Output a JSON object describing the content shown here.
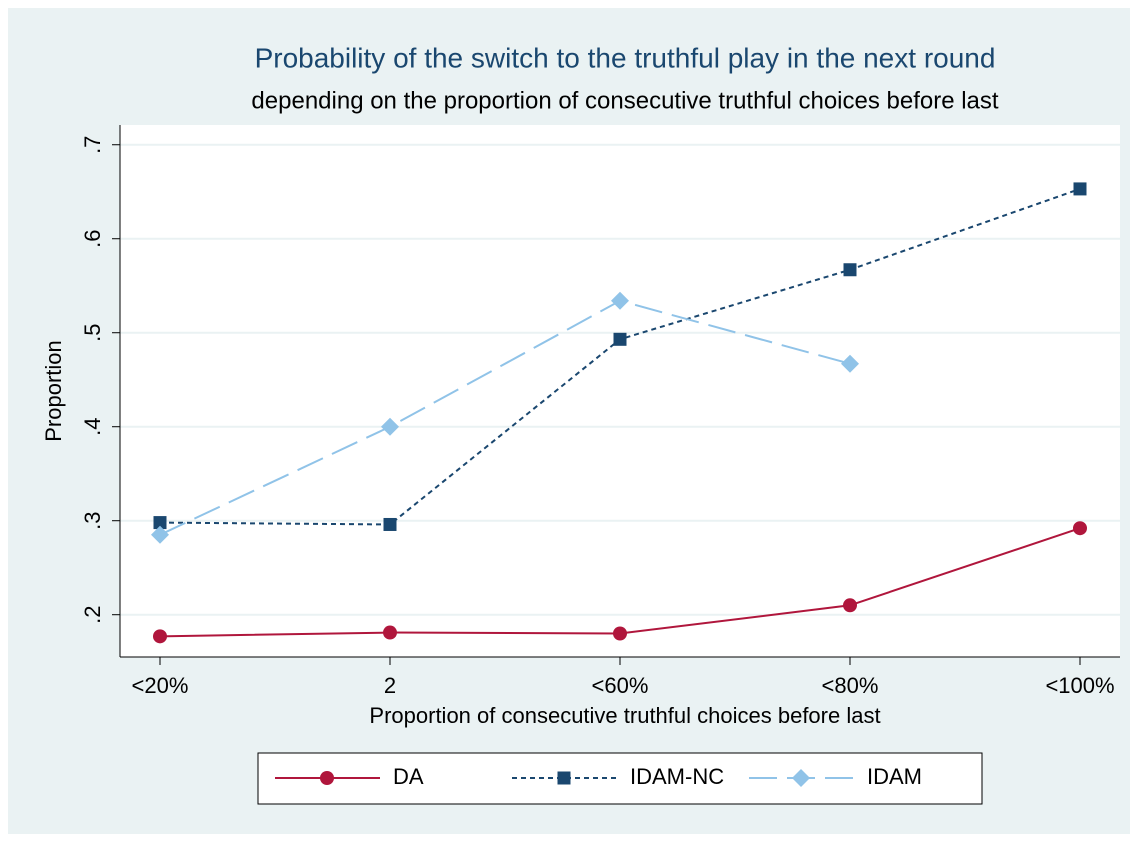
{
  "chart_data": {
    "type": "line",
    "title": "Probability of the switch to the truthful play in the next round",
    "subtitle": "depending on the proportion of consecutive truthful choices before last",
    "x_label": "Proportion of consecutive truthful choices before last",
    "y_label": "Proportion",
    "categories": [
      "<20%",
      "2",
      "<60%",
      "<80%",
      "<100%"
    ],
    "series": [
      {
        "name": "DA",
        "color": "#b0163c",
        "dash": "solid",
        "marker": "circle",
        "values": [
          0.177,
          0.181,
          0.18,
          0.21,
          0.292
        ]
      },
      {
        "name": "IDAM-NC",
        "color": "#1a476f",
        "dash": "dot",
        "marker": "square",
        "values": [
          0.298,
          0.296,
          0.493,
          0.567,
          0.653
        ]
      },
      {
        "name": "IDAM",
        "color": "#90c3e8",
        "dash": "longdash",
        "marker": "diamond",
        "values": [
          0.285,
          0.4,
          0.534,
          0.467,
          null
        ]
      }
    ],
    "ylim": [
      0.155,
      0.721
    ],
    "yticks": [
      {
        "value": 0.2,
        "label": ".2"
      },
      {
        "value": 0.3,
        "label": ".3"
      },
      {
        "value": 0.4,
        "label": ".4"
      },
      {
        "value": 0.5,
        "label": ".5"
      },
      {
        "value": 0.6,
        "label": ".6"
      },
      {
        "value": 0.7,
        "label": ".7"
      }
    ],
    "grid": true,
    "legend": "bottom"
  }
}
